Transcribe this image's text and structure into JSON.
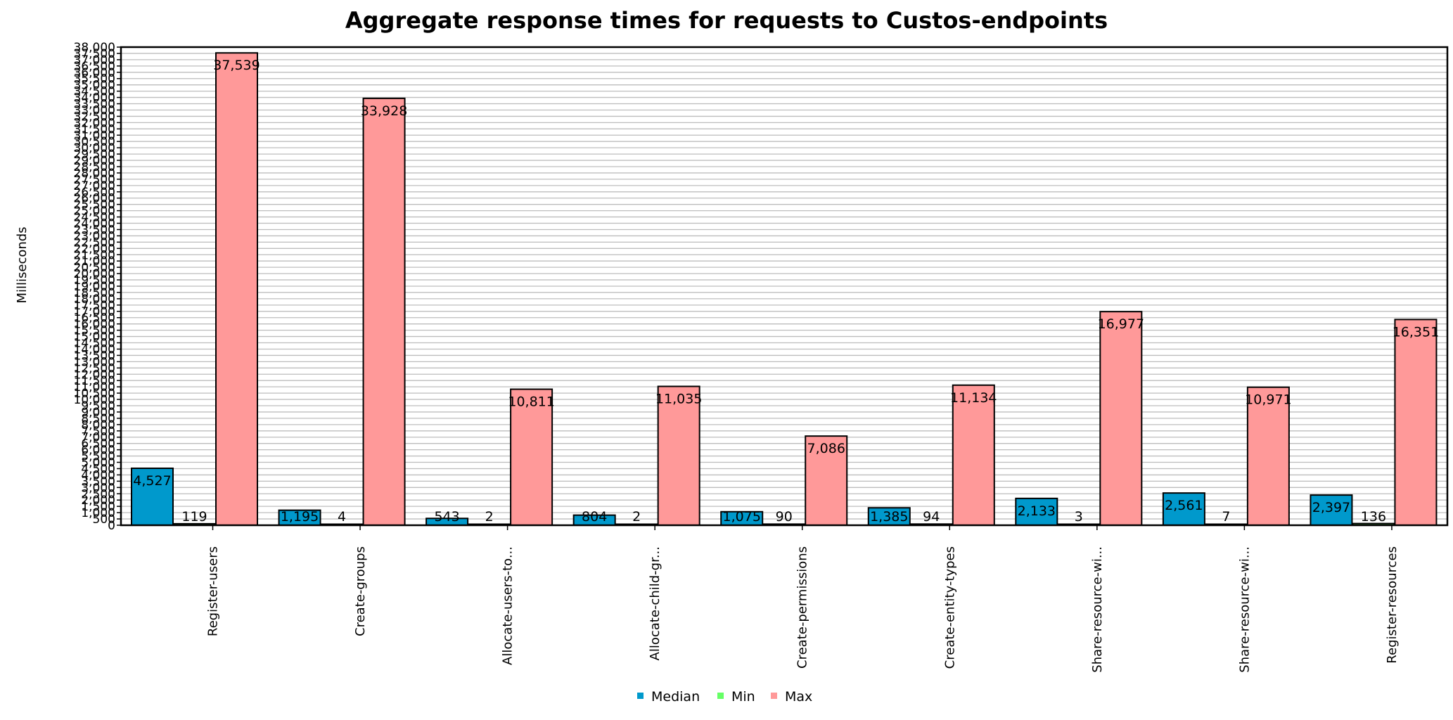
{
  "chart_data": {
    "type": "bar",
    "title": "Aggregate response times for requests to Custos-endpoints",
    "xlabel": "",
    "ylabel": "Milliseconds",
    "ylim": [
      0,
      38000
    ],
    "ytick_step": 500,
    "grid": true,
    "legend_position": "bottom",
    "categories": [
      "Register-users",
      "Create-groups",
      "Allocate-users-to...",
      "Allocate-child-gr...",
      "Create-permissions",
      "Create-entity-types",
      "Share-resource-wi...",
      "Share-resource-wi...",
      "Register-resources"
    ],
    "series": [
      {
        "name": "Median",
        "color": "#0099cc",
        "values": [
          4527,
          1195,
          543,
          804,
          1075,
          1385,
          2133,
          2561,
          2397
        ]
      },
      {
        "name": "Min",
        "color": "#66ff66",
        "values": [
          119,
          4,
          2,
          2,
          90,
          94,
          3,
          7,
          136
        ]
      },
      {
        "name": "Max",
        "color": "#ff9999",
        "values": [
          37539,
          33928,
          10811,
          11035,
          7086,
          11134,
          16977,
          10971,
          16351
        ]
      }
    ]
  }
}
